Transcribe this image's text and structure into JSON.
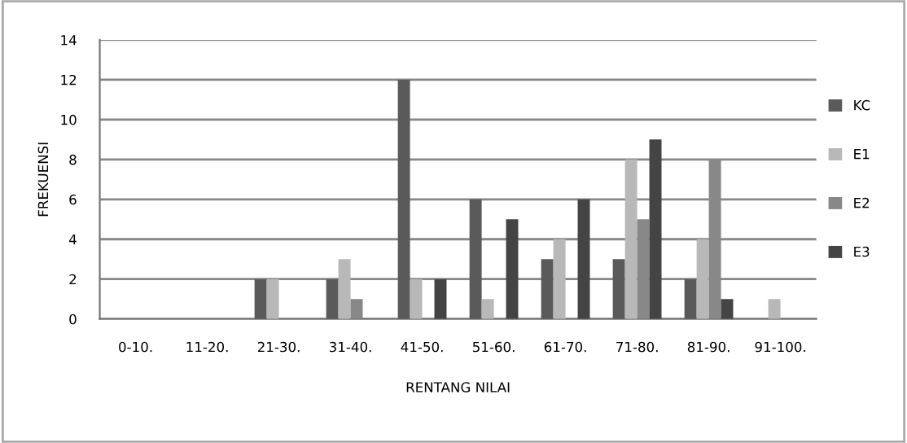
{
  "chart_data": {
    "type": "bar",
    "xlabel": "RENTANG NILAI",
    "ylabel": "FREKUENSI",
    "categories": [
      "0-10.",
      "11-20.",
      "21-30.",
      "31-40.",
      "41-50.",
      "51-60.",
      "61-70.",
      "71-80.",
      "81-90.",
      "91-100."
    ],
    "series": [
      {
        "name": "KC",
        "color": "#5a5a5a",
        "values": [
          0,
          0,
          2,
          2,
          12,
          6,
          3,
          3,
          2,
          0
        ]
      },
      {
        "name": "E1",
        "color": "#b8b8b8",
        "values": [
          0,
          0,
          2,
          3,
          2,
          1,
          4,
          8,
          4,
          1
        ]
      },
      {
        "name": "E2",
        "color": "#888888",
        "values": [
          0,
          0,
          0,
          1,
          0,
          0,
          0,
          5,
          8,
          0
        ]
      },
      {
        "name": "E3",
        "color": "#444444",
        "values": [
          0,
          0,
          0,
          0,
          2,
          5,
          6,
          9,
          1,
          0
        ]
      }
    ],
    "ylim": [
      0,
      14
    ],
    "yticks": [
      0,
      2,
      4,
      6,
      8,
      10,
      12,
      14
    ],
    "grid": "y",
    "legend": "right"
  }
}
